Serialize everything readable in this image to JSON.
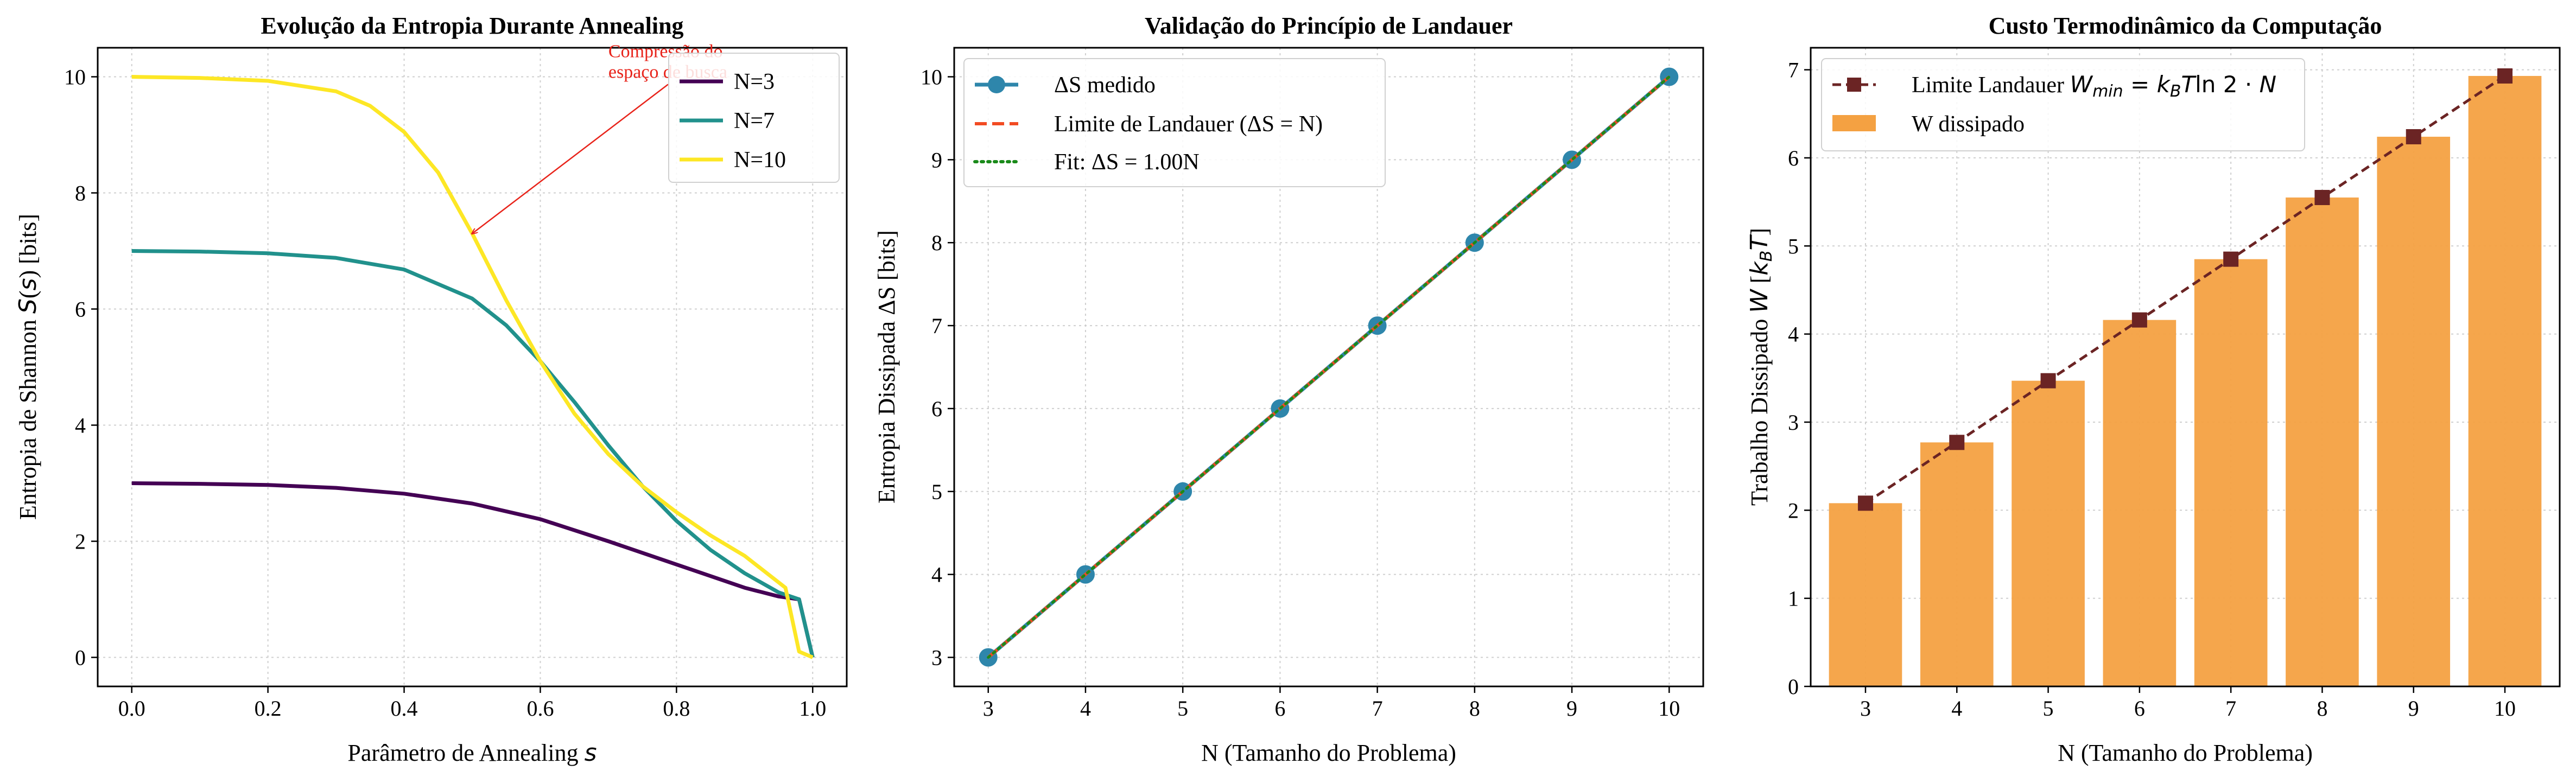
{
  "chart_data": [
    {
      "type": "line",
      "title": "Evolução da Entropia Durante Annealing",
      "xlabel": "Parâmetro de Annealing s",
      "ylabel": "Entropia de Shannon S(s) [bits]",
      "xlim": [
        -0.05,
        1.05
      ],
      "ylim": [
        -0.5,
        10.5
      ],
      "xticks": [
        "0.0",
        "0.2",
        "0.4",
        "0.6",
        "0.8",
        "1.0"
      ],
      "yticks": [
        "0",
        "2",
        "4",
        "6",
        "8",
        "10"
      ],
      "grid": true,
      "legend_position": "top-right",
      "annotation": {
        "text_line1": "Compressão do",
        "text_line2": "espaço de busca",
        "text_xy": [
          0.7,
          10.0
        ],
        "arrow_to": [
          0.5,
          7.3
        ]
      },
      "series": [
        {
          "name": "N=3",
          "color": "#440154",
          "x": [
            0,
            0.1,
            0.2,
            0.3,
            0.4,
            0.5,
            0.6,
            0.7,
            0.8,
            0.9,
            0.95,
            0.98,
            1.0
          ],
          "y": [
            3.0,
            2.99,
            2.97,
            2.92,
            2.82,
            2.65,
            2.38,
            2.0,
            1.6,
            1.2,
            1.05,
            1.0,
            0.0
          ]
        },
        {
          "name": "N=7",
          "color": "#21918c",
          "x": [
            0,
            0.1,
            0.2,
            0.3,
            0.4,
            0.5,
            0.55,
            0.6,
            0.65,
            0.7,
            0.75,
            0.8,
            0.85,
            0.9,
            0.95,
            0.98,
            1.0
          ],
          "y": [
            7.0,
            6.99,
            6.96,
            6.88,
            6.68,
            6.18,
            5.72,
            5.1,
            4.4,
            3.65,
            2.95,
            2.35,
            1.85,
            1.45,
            1.12,
            1.0,
            0.0
          ]
        },
        {
          "name": "N=10",
          "color": "#fde725",
          "x": [
            0,
            0.1,
            0.2,
            0.3,
            0.35,
            0.4,
            0.45,
            0.5,
            0.55,
            0.6,
            0.65,
            0.7,
            0.75,
            0.8,
            0.85,
            0.9,
            0.96,
            0.98,
            1.0
          ],
          "y": [
            10.0,
            9.98,
            9.93,
            9.75,
            9.5,
            9.05,
            8.35,
            7.3,
            6.15,
            5.1,
            4.2,
            3.5,
            2.95,
            2.5,
            2.1,
            1.75,
            1.2,
            0.1,
            0.0
          ]
        }
      ]
    },
    {
      "type": "line",
      "title": "Validação do Princípio de Landauer",
      "xlabel": "N (Tamanho do Problema)",
      "ylabel": "Entropia Dissipada ΔS [bits]",
      "xlim": [
        2.65,
        10.35
      ],
      "ylim": [
        2.65,
        10.35
      ],
      "xticks": [
        "3",
        "4",
        "5",
        "6",
        "7",
        "8",
        "9",
        "10"
      ],
      "yticks": [
        "3",
        "4",
        "5",
        "6",
        "7",
        "8",
        "9",
        "10"
      ],
      "grid": true,
      "legend_position": "top-left",
      "series": [
        {
          "name": "ΔS medido",
          "color": "#2e86ab",
          "style": "solid-markers",
          "x": [
            3,
            4,
            5,
            6,
            7,
            8,
            9,
            10
          ],
          "y": [
            3,
            4,
            5,
            6,
            7,
            8,
            9,
            10
          ]
        },
        {
          "name": "Limite de Landauer (ΔS = N)",
          "color": "#f24b23",
          "style": "dashed",
          "x": [
            3,
            4,
            5,
            6,
            7,
            8,
            9,
            10
          ],
          "y": [
            3,
            4,
            5,
            6,
            7,
            8,
            9,
            10
          ]
        },
        {
          "name": "Fit: ΔS = 1.00N",
          "color": "#1a8a1a",
          "style": "dotted",
          "x": [
            3,
            4,
            5,
            6,
            7,
            8,
            9,
            10
          ],
          "y": [
            3,
            4,
            5,
            6,
            7,
            8,
            9,
            10
          ]
        }
      ]
    },
    {
      "type": "bar",
      "title": "Custo Termodinâmico da Computação",
      "xlabel": "N (Tamanho do Problema)",
      "ylabel": "Trabalho Dissipado W [kBT]",
      "categories": [
        "3",
        "4",
        "5",
        "6",
        "7",
        "8",
        "9",
        "10"
      ],
      "ylim": [
        0,
        7.25
      ],
      "yticks": [
        "0",
        "1",
        "2",
        "3",
        "4",
        "5",
        "6",
        "7"
      ],
      "grid": true,
      "legend_position": "top-left",
      "series": [
        {
          "name": "W dissipado",
          "color": "#f4a142",
          "values": [
            2.08,
            2.77,
            3.47,
            4.16,
            4.85,
            5.55,
            6.24,
            6.93
          ]
        },
        {
          "name": "Limite Landauer W_min = k_B T ln2 · N",
          "color": "#6b2424",
          "style": "dashed-square-markers",
          "values": [
            2.08,
            2.77,
            3.47,
            4.16,
            4.85,
            5.55,
            6.24,
            6.93
          ]
        }
      ]
    }
  ]
}
